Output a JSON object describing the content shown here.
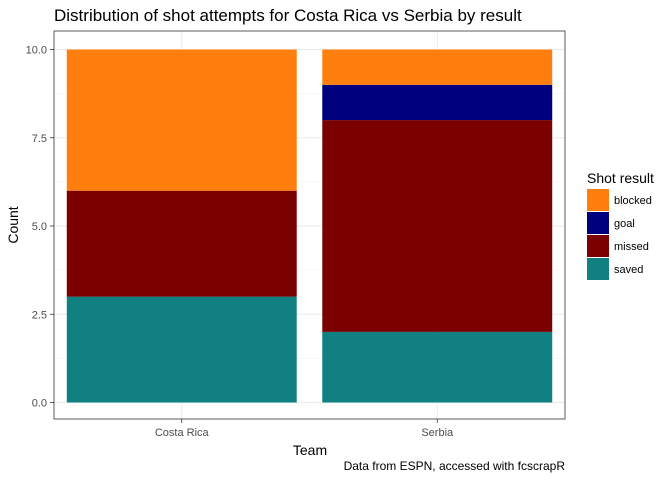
{
  "chart_data": {
    "type": "bar",
    "stacked": true,
    "title": "Distribution of shot attempts for Costa Rica vs Serbia by result",
    "xlabel": "Team",
    "ylabel": "Count",
    "caption": "Data from ESPN, accessed with fcscrapR",
    "categories": [
      "Costa Rica",
      "Serbia"
    ],
    "ylim": [
      0,
      10
    ],
    "yticks": [
      "0.0",
      "2.5",
      "5.0",
      "7.5",
      "10.0"
    ],
    "ytick_values": [
      0,
      2.5,
      5,
      7.5,
      10
    ],
    "grid": true,
    "legend": {
      "title": "Shot result",
      "placement": "right"
    },
    "series": [
      {
        "name": "saved",
        "values": [
          3,
          2
        ],
        "color": "#118080"
      },
      {
        "name": "missed",
        "values": [
          3,
          6
        ],
        "color": "#7b0000"
      },
      {
        "name": "goal",
        "values": [
          0,
          1
        ],
        "color": "#00007f"
      },
      {
        "name": "blocked",
        "values": [
          4,
          1
        ],
        "color": "#ff7f0e"
      }
    ],
    "legend_order": [
      "blocked",
      "goal",
      "missed",
      "saved"
    ]
  }
}
